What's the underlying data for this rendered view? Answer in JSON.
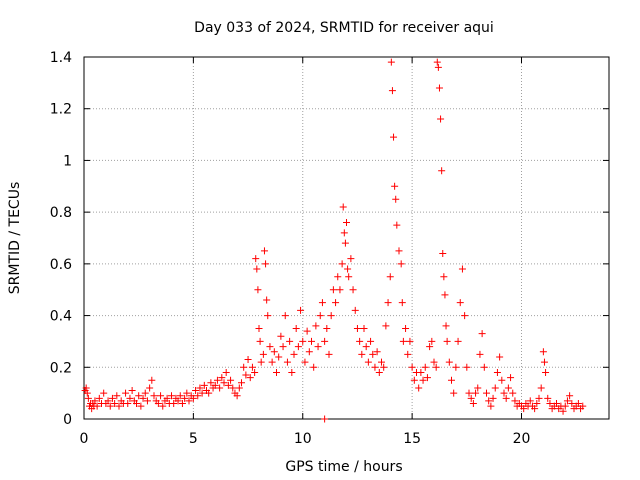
{
  "chart_data": {
    "type": "scatter",
    "title": "Day 033 of 2024, SRMTID for receiver aqui",
    "xlabel": "GPS time / hours",
    "ylabel": "SRMTID / TECUs",
    "xlim": [
      0,
      24
    ],
    "ylim": [
      0,
      1.4
    ],
    "xticks": [
      0,
      5,
      10,
      15,
      20
    ],
    "xtick_labels": [
      "0",
      "5",
      "10",
      "15",
      "20"
    ],
    "yticks": [
      0,
      0.2,
      0.4,
      0.6,
      0.8,
      1.0,
      1.2,
      1.4
    ],
    "ytick_labels": [
      "0",
      "0.2",
      "0.4",
      "0.6",
      "0.8",
      "1",
      "1.2",
      "1.4"
    ],
    "grid": true,
    "marker": "plus",
    "color": "#ff0000",
    "series": [
      {
        "name": "SRMTID",
        "points": [
          [
            0.05,
            0.11
          ],
          [
            0.1,
            0.12
          ],
          [
            0.15,
            0.1
          ],
          [
            0.2,
            0.08
          ],
          [
            0.25,
            0.05
          ],
          [
            0.3,
            0.06
          ],
          [
            0.35,
            0.04
          ],
          [
            0.4,
            0.06
          ],
          [
            0.45,
            0.05
          ],
          [
            0.5,
            0.07
          ],
          [
            0.6,
            0.05
          ],
          [
            0.7,
            0.08
          ],
          [
            0.8,
            0.06
          ],
          [
            0.9,
            0.1
          ],
          [
            1.0,
            0.06
          ],
          [
            1.1,
            0.07
          ],
          [
            1.2,
            0.05
          ],
          [
            1.3,
            0.08
          ],
          [
            1.4,
            0.06
          ],
          [
            1.5,
            0.09
          ],
          [
            1.6,
            0.05
          ],
          [
            1.7,
            0.07
          ],
          [
            1.8,
            0.06
          ],
          [
            1.9,
            0.1
          ],
          [
            2.0,
            0.06
          ],
          [
            2.1,
            0.08
          ],
          [
            2.2,
            0.11
          ],
          [
            2.3,
            0.07
          ],
          [
            2.4,
            0.06
          ],
          [
            2.5,
            0.09
          ],
          [
            2.6,
            0.05
          ],
          [
            2.7,
            0.08
          ],
          [
            2.8,
            0.1
          ],
          [
            2.9,
            0.07
          ],
          [
            3.0,
            0.12
          ],
          [
            3.1,
            0.15
          ],
          [
            3.2,
            0.09
          ],
          [
            3.3,
            0.07
          ],
          [
            3.4,
            0.06
          ],
          [
            3.5,
            0.09
          ],
          [
            3.6,
            0.05
          ],
          [
            3.7,
            0.07
          ],
          [
            3.8,
            0.08
          ],
          [
            3.9,
            0.06
          ],
          [
            4.0,
            0.09
          ],
          [
            4.1,
            0.06
          ],
          [
            4.2,
            0.08
          ],
          [
            4.3,
            0.07
          ],
          [
            4.4,
            0.09
          ],
          [
            4.5,
            0.06
          ],
          [
            4.6,
            0.08
          ],
          [
            4.7,
            0.1
          ],
          [
            4.8,
            0.07
          ],
          [
            4.9,
            0.09
          ],
          [
            5.0,
            0.08
          ],
          [
            5.1,
            0.11
          ],
          [
            5.2,
            0.09
          ],
          [
            5.3,
            0.12
          ],
          [
            5.4,
            0.1
          ],
          [
            5.5,
            0.13
          ],
          [
            5.6,
            0.11
          ],
          [
            5.7,
            0.1
          ],
          [
            5.8,
            0.14
          ],
          [
            5.9,
            0.12
          ],
          [
            6.0,
            0.13
          ],
          [
            6.1,
            0.15
          ],
          [
            6.2,
            0.12
          ],
          [
            6.3,
            0.16
          ],
          [
            6.4,
            0.14
          ],
          [
            6.5,
            0.18
          ],
          [
            6.6,
            0.13
          ],
          [
            6.7,
            0.15
          ],
          [
            6.8,
            0.12
          ],
          [
            6.9,
            0.1
          ],
          [
            7.0,
            0.09
          ],
          [
            7.1,
            0.12
          ],
          [
            7.2,
            0.14
          ],
          [
            7.3,
            0.2
          ],
          [
            7.4,
            0.17
          ],
          [
            7.5,
            0.23
          ],
          [
            7.6,
            0.16
          ],
          [
            7.7,
            0.2
          ],
          [
            7.8,
            0.18
          ],
          [
            7.85,
            0.62
          ],
          [
            7.9,
            0.58
          ],
          [
            7.95,
            0.5
          ],
          [
            8.0,
            0.35
          ],
          [
            8.05,
            0.3
          ],
          [
            8.1,
            0.22
          ],
          [
            8.2,
            0.25
          ],
          [
            8.25,
            0.65
          ],
          [
            8.3,
            0.6
          ],
          [
            8.35,
            0.46
          ],
          [
            8.4,
            0.4
          ],
          [
            8.5,
            0.28
          ],
          [
            8.6,
            0.22
          ],
          [
            8.7,
            0.26
          ],
          [
            8.8,
            0.18
          ],
          [
            8.9,
            0.24
          ],
          [
            9.0,
            0.32
          ],
          [
            9.1,
            0.28
          ],
          [
            9.2,
            0.4
          ],
          [
            9.3,
            0.22
          ],
          [
            9.4,
            0.3
          ],
          [
            9.5,
            0.18
          ],
          [
            9.6,
            0.25
          ],
          [
            9.7,
            0.35
          ],
          [
            9.8,
            0.28
          ],
          [
            9.9,
            0.42
          ],
          [
            10.0,
            0.3
          ],
          [
            10.1,
            0.22
          ],
          [
            10.2,
            0.34
          ],
          [
            10.3,
            0.26
          ],
          [
            10.4,
            0.3
          ],
          [
            10.5,
            0.2
          ],
          [
            10.6,
            0.36
          ],
          [
            10.7,
            0.28
          ],
          [
            10.8,
            0.4
          ],
          [
            10.9,
            0.45
          ],
          [
            11.0,
            0.3
          ],
          [
            11.0,
            0.0
          ],
          [
            11.1,
            0.35
          ],
          [
            11.2,
            0.25
          ],
          [
            11.3,
            0.4
          ],
          [
            11.4,
            0.5
          ],
          [
            11.5,
            0.45
          ],
          [
            11.6,
            0.55
          ],
          [
            11.7,
            0.5
          ],
          [
            11.8,
            0.6
          ],
          [
            11.85,
            0.82
          ],
          [
            11.9,
            0.72
          ],
          [
            11.95,
            0.68
          ],
          [
            12.0,
            0.76
          ],
          [
            12.05,
            0.58
          ],
          [
            12.1,
            0.55
          ],
          [
            12.2,
            0.62
          ],
          [
            12.3,
            0.5
          ],
          [
            12.4,
            0.42
          ],
          [
            12.5,
            0.35
          ],
          [
            12.6,
            0.3
          ],
          [
            12.7,
            0.25
          ],
          [
            12.8,
            0.35
          ],
          [
            12.9,
            0.28
          ],
          [
            13.0,
            0.22
          ],
          [
            13.1,
            0.3
          ],
          [
            13.2,
            0.25
          ],
          [
            13.3,
            0.2
          ],
          [
            13.4,
            0.26
          ],
          [
            13.5,
            0.18
          ],
          [
            13.6,
            0.22
          ],
          [
            13.7,
            0.2
          ],
          [
            13.8,
            0.36
          ],
          [
            13.9,
            0.45
          ],
          [
            14.0,
            0.55
          ],
          [
            14.05,
            1.38
          ],
          [
            14.1,
            1.27
          ],
          [
            14.15,
            1.09
          ],
          [
            14.2,
            0.9
          ],
          [
            14.25,
            0.85
          ],
          [
            14.3,
            0.75
          ],
          [
            14.4,
            0.65
          ],
          [
            14.5,
            0.6
          ],
          [
            14.55,
            0.45
          ],
          [
            14.6,
            0.3
          ],
          [
            14.7,
            0.35
          ],
          [
            14.8,
            0.25
          ],
          [
            14.9,
            0.3
          ],
          [
            15.0,
            0.2
          ],
          [
            15.1,
            0.15
          ],
          [
            15.2,
            0.18
          ],
          [
            15.3,
            0.12
          ],
          [
            15.4,
            0.18
          ],
          [
            15.5,
            0.15
          ],
          [
            15.6,
            0.2
          ],
          [
            15.7,
            0.16
          ],
          [
            15.8,
            0.28
          ],
          [
            15.9,
            0.3
          ],
          [
            16.0,
            0.22
          ],
          [
            16.1,
            0.2
          ],
          [
            16.15,
            1.38
          ],
          [
            16.2,
            1.36
          ],
          [
            16.25,
            1.28
          ],
          [
            16.3,
            1.16
          ],
          [
            16.35,
            0.96
          ],
          [
            16.4,
            0.64
          ],
          [
            16.45,
            0.55
          ],
          [
            16.5,
            0.48
          ],
          [
            16.55,
            0.36
          ],
          [
            16.6,
            0.3
          ],
          [
            16.7,
            0.22
          ],
          [
            16.8,
            0.15
          ],
          [
            16.9,
            0.1
          ],
          [
            17.0,
            0.2
          ],
          [
            17.1,
            0.3
          ],
          [
            17.2,
            0.45
          ],
          [
            17.3,
            0.58
          ],
          [
            17.4,
            0.4
          ],
          [
            17.5,
            0.2
          ],
          [
            17.6,
            0.1
          ],
          [
            17.7,
            0.08
          ],
          [
            17.8,
            0.06
          ],
          [
            17.9,
            0.1
          ],
          [
            18.0,
            0.12
          ],
          [
            18.1,
            0.25
          ],
          [
            18.2,
            0.33
          ],
          [
            18.3,
            0.2
          ],
          [
            18.4,
            0.1
          ],
          [
            18.5,
            0.07
          ],
          [
            18.6,
            0.05
          ],
          [
            18.7,
            0.08
          ],
          [
            18.8,
            0.12
          ],
          [
            18.9,
            0.18
          ],
          [
            19.0,
            0.24
          ],
          [
            19.1,
            0.15
          ],
          [
            19.2,
            0.1
          ],
          [
            19.3,
            0.08
          ],
          [
            19.4,
            0.12
          ],
          [
            19.5,
            0.16
          ],
          [
            19.6,
            0.1
          ],
          [
            19.7,
            0.07
          ],
          [
            19.8,
            0.05
          ],
          [
            19.9,
            0.06
          ],
          [
            20.0,
            0.05
          ],
          [
            20.1,
            0.04
          ],
          [
            20.2,
            0.06
          ],
          [
            20.3,
            0.05
          ],
          [
            20.4,
            0.07
          ],
          [
            20.5,
            0.05
          ],
          [
            20.6,
            0.04
          ],
          [
            20.7,
            0.06
          ],
          [
            20.8,
            0.08
          ],
          [
            20.9,
            0.12
          ],
          [
            21.0,
            0.26
          ],
          [
            21.05,
            0.22
          ],
          [
            21.1,
            0.18
          ],
          [
            21.2,
            0.08
          ],
          [
            21.3,
            0.06
          ],
          [
            21.4,
            0.04
          ],
          [
            21.5,
            0.05
          ],
          [
            21.6,
            0.06
          ],
          [
            21.7,
            0.04
          ],
          [
            21.8,
            0.05
          ],
          [
            21.9,
            0.03
          ],
          [
            22.0,
            0.05
          ],
          [
            22.1,
            0.07
          ],
          [
            22.2,
            0.09
          ],
          [
            22.3,
            0.06
          ],
          [
            22.4,
            0.04
          ],
          [
            22.5,
            0.05
          ],
          [
            22.6,
            0.06
          ],
          [
            22.7,
            0.04
          ],
          [
            22.8,
            0.05
          ]
        ]
      }
    ]
  }
}
